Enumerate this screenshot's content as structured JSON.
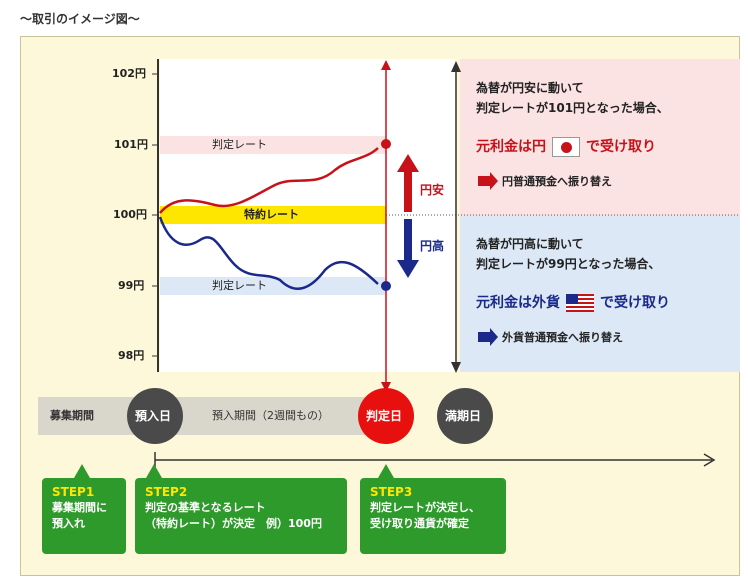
{
  "heading": "～取引のイメージ図～",
  "axis": {
    "ticks": [
      "102円",
      "101円",
      "100円",
      "99円",
      "98円"
    ]
  },
  "bands": {
    "upper_label": "判定レート",
    "contract_label": "特約レート",
    "lower_label": "判定レート"
  },
  "arrows": {
    "up_label": "円安",
    "down_label": "円高"
  },
  "case_weak_yen": {
    "line1": "為替が円安に動いて",
    "line2": "判定レートが101円となった場合、",
    "headline_pre": "元利金は円",
    "headline_post": "で受け取り",
    "note": "円普通預金へ振り替え"
  },
  "case_strong_yen": {
    "line1": "為替が円高に動いて",
    "line2": "判定レートが99円となった場合、",
    "headline_pre": "元利金は外貨",
    "headline_post": "で受け取り",
    "note": "外貨普通預金へ振り替え"
  },
  "timeline": {
    "recruit": "募集期間",
    "deposit_day": "預入日",
    "deposit_period": "預入期間（2週間もの）",
    "judge_day": "判定日",
    "maturity_day": "満期日"
  },
  "steps": [
    {
      "label": "STEP1",
      "lines": [
        "募集期間に",
        "預入れ"
      ]
    },
    {
      "label": "STEP2",
      "lines": [
        "判定の基準となるレート",
        "（特約レート）が決定　例）100円"
      ]
    },
    {
      "label": "STEP3",
      "lines": [
        "判定レートが決定し、",
        "受け取り通貨が確定"
      ]
    }
  ],
  "colors": {
    "red": "#c8121a",
    "blue": "#1b2a8a",
    "green": "#2f9a2c",
    "yellow_band": "#ffe600",
    "pink_band": "#fbe3e3",
    "blue_band": "#dce8f6"
  }
}
